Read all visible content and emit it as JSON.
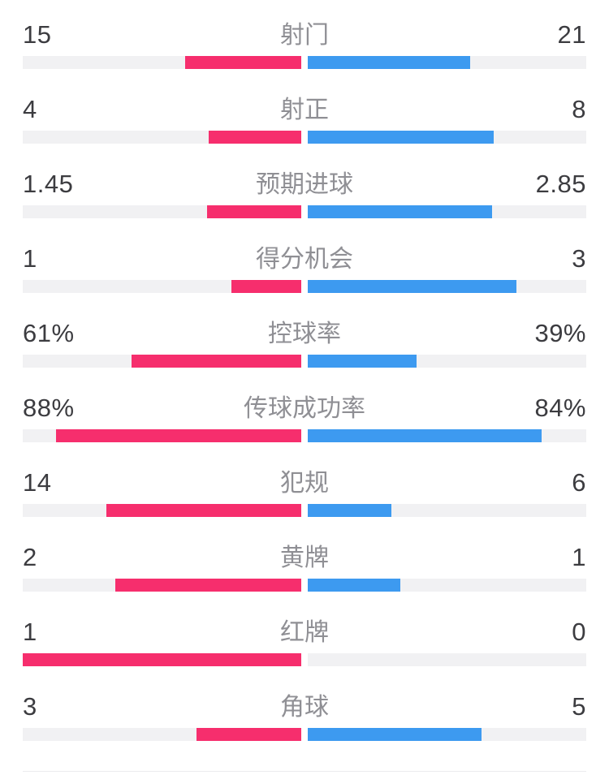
{
  "colors": {
    "home": "#f62e6d",
    "away": "#3d9af0",
    "track": "#f1f1f3",
    "value_text": "#3c3c40",
    "label_text": "#8f8f94",
    "divider": "#ececee",
    "background": "#ffffff"
  },
  "rows": [
    {
      "label": "射门",
      "home": "15",
      "away": "21",
      "home_fill": 41.7,
      "away_fill": 58.3
    },
    {
      "label": "射正",
      "home": "4",
      "away": "8",
      "home_fill": 33.3,
      "away_fill": 66.7
    },
    {
      "label": "预期进球",
      "home": "1.45",
      "away": "2.85",
      "home_fill": 33.7,
      "away_fill": 66.3
    },
    {
      "label": "得分机会",
      "home": "1",
      "away": "3",
      "home_fill": 25,
      "away_fill": 75
    },
    {
      "label": "控球率",
      "home": "61%",
      "away": "39%",
      "home_fill": 61,
      "away_fill": 39
    },
    {
      "label": "传球成功率",
      "home": "88%",
      "away": "84%",
      "home_fill": 88,
      "away_fill": 84
    },
    {
      "label": "犯规",
      "home": "14",
      "away": "6",
      "home_fill": 70,
      "away_fill": 30
    },
    {
      "label": "黄牌",
      "home": "2",
      "away": "1",
      "home_fill": 66.7,
      "away_fill": 33.3
    },
    {
      "label": "红牌",
      "home": "1",
      "away": "0",
      "home_fill": 100,
      "away_fill": 0
    },
    {
      "label": "角球",
      "home": "3",
      "away": "5",
      "home_fill": 37.5,
      "away_fill": 62.5
    }
  ],
  "chart_data": {
    "type": "bar",
    "orientation": "horizontal-paired-from-center",
    "categories": [
      "射门",
      "射正",
      "预期进球",
      "得分机会",
      "控球率",
      "传球成功率",
      "犯规",
      "黄牌",
      "红牌",
      "角球"
    ],
    "units": [
      "",
      "",
      "",
      "",
      "%",
      "%",
      "",
      "",
      "",
      ""
    ],
    "series": [
      {
        "name": "home",
        "color": "#f62e6d",
        "values": [
          15,
          4,
          1.45,
          1,
          61,
          88,
          14,
          2,
          1,
          3
        ]
      },
      {
        "name": "away",
        "color": "#3d9af0",
        "values": [
          21,
          8,
          2.85,
          3,
          39,
          84,
          6,
          1,
          0,
          5
        ]
      }
    ],
    "bar_rule": "count stats fill value/(home+away) of each half-track; percent stats fill value/100 of each half-track",
    "grid": false,
    "legend": false
  }
}
